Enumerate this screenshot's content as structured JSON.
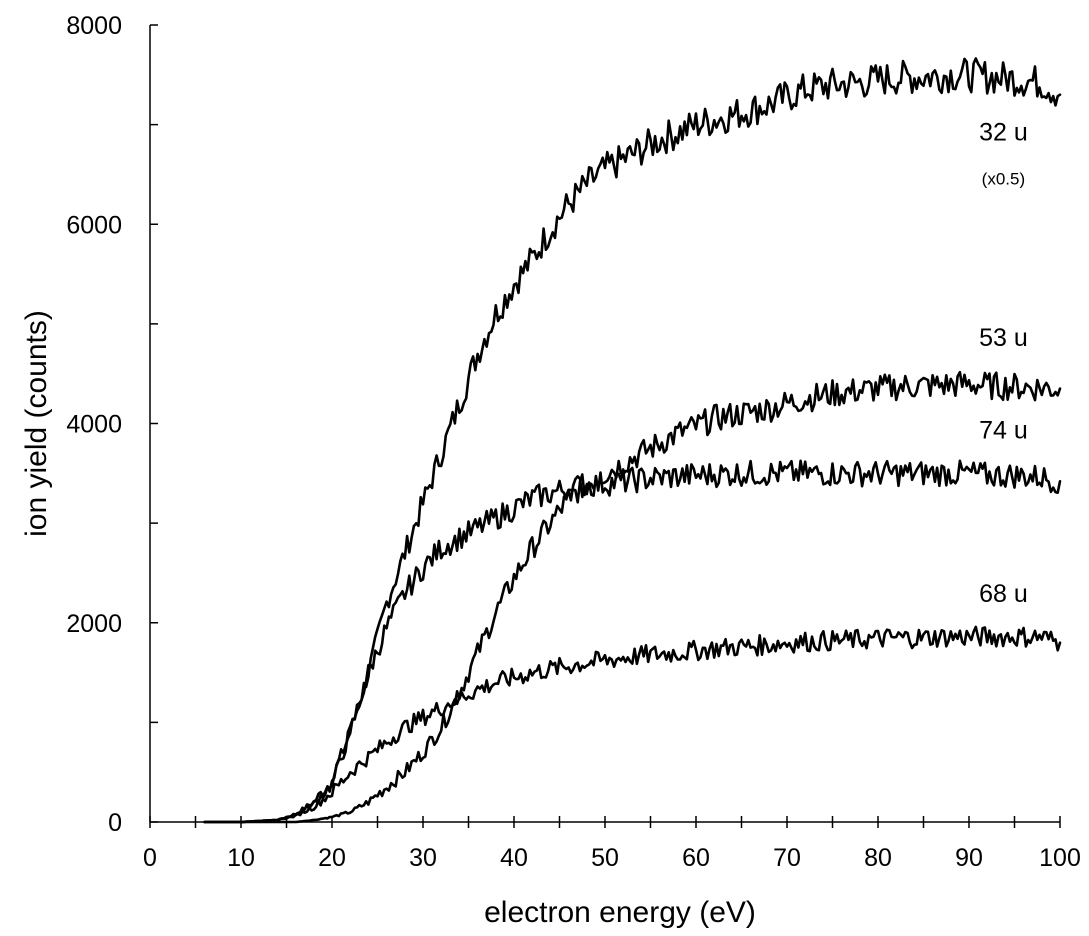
{
  "chart_data": {
    "type": "line",
    "title": "",
    "xlabel": "electron energy (eV)",
    "ylabel": "ion yield (counts)",
    "xlim": [
      0,
      100
    ],
    "ylim": [
      0,
      8000
    ],
    "x_ticks": [
      "0",
      "10",
      "20",
      "30",
      "40",
      "50",
      "60",
      "70",
      "80",
      "90",
      "100"
    ],
    "y_ticks": [
      "0",
      "2000",
      "4000",
      "6000",
      "8000"
    ],
    "grid": false,
    "legend": "none",
    "series": [
      {
        "name": "32 u",
        "note": "(x0.5)",
        "x": [
          6,
          10,
          14,
          16,
          18,
          20,
          22,
          24,
          26,
          28,
          30,
          32,
          34,
          36,
          38,
          40,
          42,
          44,
          46,
          48,
          50,
          52,
          54,
          56,
          58,
          60,
          62,
          65,
          68,
          70,
          72,
          75,
          78,
          80,
          82,
          85,
          88,
          90,
          92,
          95,
          98,
          100
        ],
        "y": [
          0,
          0,
          20,
          80,
          200,
          420,
          900,
          1500,
          2200,
          2700,
          3200,
          3700,
          4200,
          4700,
          5100,
          5400,
          5650,
          5950,
          6200,
          6400,
          6550,
          6650,
          6750,
          6850,
          6920,
          7000,
          7050,
          7120,
          7200,
          7280,
          7350,
          7400,
          7420,
          7450,
          7470,
          7480,
          7500,
          7500,
          7480,
          7460,
          7420,
          7300
        ]
      },
      {
        "name": "53 u",
        "x": [
          10,
          16,
          18,
          20,
          22,
          24,
          26,
          28,
          30,
          32,
          34,
          36,
          38,
          40,
          42,
          44,
          46,
          48,
          50,
          52,
          54,
          56,
          58,
          60,
          62,
          65,
          68,
          70,
          72,
          75,
          78,
          80,
          82,
          85,
          88,
          90,
          92,
          95,
          98,
          100
        ],
        "y": [
          0,
          0,
          20,
          50,
          100,
          200,
          350,
          500,
          700,
          950,
          1300,
          1700,
          2100,
          2450,
          2750,
          3000,
          3250,
          3400,
          3500,
          3600,
          3700,
          3800,
          3900,
          3970,
          4050,
          4100,
          4150,
          4200,
          4250,
          4300,
          4330,
          4350,
          4370,
          4380,
          4390,
          4400,
          4380,
          4370,
          4360,
          4350
        ]
      },
      {
        "name": "74 u",
        "x": [
          6,
          10,
          14,
          16,
          18,
          20,
          22,
          24,
          26,
          28,
          30,
          32,
          34,
          36,
          38,
          40,
          42,
          44,
          46,
          48,
          50,
          52,
          55,
          58,
          60,
          62,
          65,
          68,
          70,
          72,
          75,
          78,
          80,
          82,
          85,
          88,
          90,
          92,
          95,
          98,
          100
        ],
        "y": [
          0,
          0,
          20,
          70,
          180,
          380,
          900,
          1500,
          1950,
          2300,
          2550,
          2750,
          2850,
          2950,
          3050,
          3150,
          3250,
          3300,
          3350,
          3380,
          3400,
          3420,
          3450,
          3470,
          3480,
          3490,
          3500,
          3500,
          3500,
          3500,
          3500,
          3500,
          3500,
          3500,
          3500,
          3500,
          3500,
          3480,
          3480,
          3460,
          3420
        ]
      },
      {
        "name": "68 u",
        "x": [
          6,
          10,
          14,
          16,
          18,
          20,
          22,
          24,
          26,
          28,
          30,
          32,
          34,
          36,
          38,
          40,
          42,
          45,
          48,
          50,
          52,
          55,
          58,
          60,
          62,
          65,
          68,
          70,
          72,
          75,
          78,
          80,
          82,
          85,
          88,
          90,
          92,
          95,
          98,
          100
        ],
        "y": [
          0,
          0,
          20,
          60,
          150,
          300,
          500,
          650,
          800,
          950,
          1050,
          1150,
          1250,
          1330,
          1400,
          1450,
          1500,
          1550,
          1600,
          1620,
          1650,
          1680,
          1700,
          1720,
          1740,
          1760,
          1780,
          1800,
          1810,
          1820,
          1830,
          1840,
          1850,
          1850,
          1860,
          1860,
          1860,
          1860,
          1860,
          1800
        ]
      }
    ],
    "series_labels": [
      {
        "series": "32 u",
        "text": "32 u",
        "note": "(x0.5)",
        "x": 94,
        "y": 6840,
        "note_y": 6400
      },
      {
        "series": "53 u",
        "text": "53 u",
        "x": 94,
        "y": 4780
      },
      {
        "series": "74 u",
        "text": "74 u",
        "x": 94,
        "y": 3850
      },
      {
        "series": "68 u",
        "text": "68 u",
        "x": 94,
        "y": 2210
      }
    ]
  }
}
